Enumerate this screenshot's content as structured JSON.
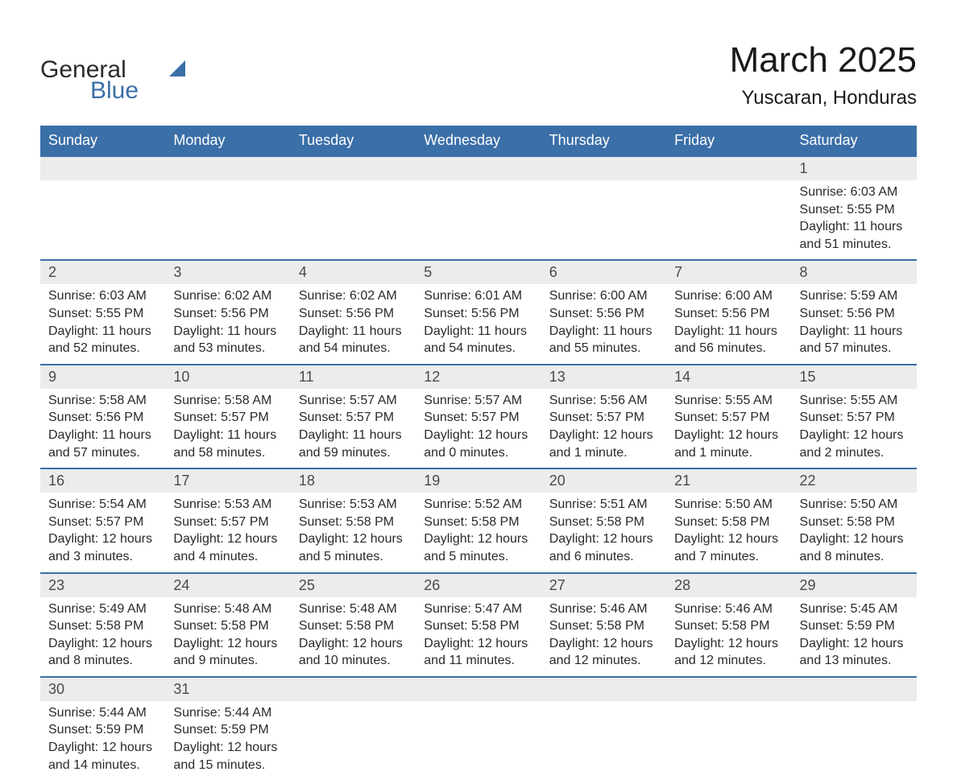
{
  "branding": {
    "name_part1": "General",
    "name_part2": "Blue",
    "colors": {
      "brand_blue": "#3b6fa8",
      "text_dark": "#2a2a2a",
      "header_bg": "#3b6fa8",
      "header_text": "#ffffff",
      "daynum_bg": "#ececec",
      "daynum_text": "#4a4a4a",
      "border_blue": "#3b6fa8"
    }
  },
  "title": "March 2025",
  "location": "Yuscaran, Honduras",
  "day_headers": [
    "Sunday",
    "Monday",
    "Tuesday",
    "Wednesday",
    "Thursday",
    "Friday",
    "Saturday"
  ],
  "weeks": [
    {
      "cells": [
        {
          "day": "",
          "sunrise": "",
          "sunset": "",
          "daylight": ""
        },
        {
          "day": "",
          "sunrise": "",
          "sunset": "",
          "daylight": ""
        },
        {
          "day": "",
          "sunrise": "",
          "sunset": "",
          "daylight": ""
        },
        {
          "day": "",
          "sunrise": "",
          "sunset": "",
          "daylight": ""
        },
        {
          "day": "",
          "sunrise": "",
          "sunset": "",
          "daylight": ""
        },
        {
          "day": "",
          "sunrise": "",
          "sunset": "",
          "daylight": ""
        },
        {
          "day": "1",
          "sunrise": "Sunrise: 6:03 AM",
          "sunset": "Sunset: 5:55 PM",
          "daylight": "Daylight: 11 hours and 51 minutes."
        }
      ]
    },
    {
      "cells": [
        {
          "day": "2",
          "sunrise": "Sunrise: 6:03 AM",
          "sunset": "Sunset: 5:55 PM",
          "daylight": "Daylight: 11 hours and 52 minutes."
        },
        {
          "day": "3",
          "sunrise": "Sunrise: 6:02 AM",
          "sunset": "Sunset: 5:56 PM",
          "daylight": "Daylight: 11 hours and 53 minutes."
        },
        {
          "day": "4",
          "sunrise": "Sunrise: 6:02 AM",
          "sunset": "Sunset: 5:56 PM",
          "daylight": "Daylight: 11 hours and 54 minutes."
        },
        {
          "day": "5",
          "sunrise": "Sunrise: 6:01 AM",
          "sunset": "Sunset: 5:56 PM",
          "daylight": "Daylight: 11 hours and 54 minutes."
        },
        {
          "day": "6",
          "sunrise": "Sunrise: 6:00 AM",
          "sunset": "Sunset: 5:56 PM",
          "daylight": "Daylight: 11 hours and 55 minutes."
        },
        {
          "day": "7",
          "sunrise": "Sunrise: 6:00 AM",
          "sunset": "Sunset: 5:56 PM",
          "daylight": "Daylight: 11 hours and 56 minutes."
        },
        {
          "day": "8",
          "sunrise": "Sunrise: 5:59 AM",
          "sunset": "Sunset: 5:56 PM",
          "daylight": "Daylight: 11 hours and 57 minutes."
        }
      ]
    },
    {
      "cells": [
        {
          "day": "9",
          "sunrise": "Sunrise: 5:58 AM",
          "sunset": "Sunset: 5:56 PM",
          "daylight": "Daylight: 11 hours and 57 minutes."
        },
        {
          "day": "10",
          "sunrise": "Sunrise: 5:58 AM",
          "sunset": "Sunset: 5:57 PM",
          "daylight": "Daylight: 11 hours and 58 minutes."
        },
        {
          "day": "11",
          "sunrise": "Sunrise: 5:57 AM",
          "sunset": "Sunset: 5:57 PM",
          "daylight": "Daylight: 11 hours and 59 minutes."
        },
        {
          "day": "12",
          "sunrise": "Sunrise: 5:57 AM",
          "sunset": "Sunset: 5:57 PM",
          "daylight": "Daylight: 12 hours and 0 minutes."
        },
        {
          "day": "13",
          "sunrise": "Sunrise: 5:56 AM",
          "sunset": "Sunset: 5:57 PM",
          "daylight": "Daylight: 12 hours and 1 minute."
        },
        {
          "day": "14",
          "sunrise": "Sunrise: 5:55 AM",
          "sunset": "Sunset: 5:57 PM",
          "daylight": "Daylight: 12 hours and 1 minute."
        },
        {
          "day": "15",
          "sunrise": "Sunrise: 5:55 AM",
          "sunset": "Sunset: 5:57 PM",
          "daylight": "Daylight: 12 hours and 2 minutes."
        }
      ]
    },
    {
      "cells": [
        {
          "day": "16",
          "sunrise": "Sunrise: 5:54 AM",
          "sunset": "Sunset: 5:57 PM",
          "daylight": "Daylight: 12 hours and 3 minutes."
        },
        {
          "day": "17",
          "sunrise": "Sunrise: 5:53 AM",
          "sunset": "Sunset: 5:57 PM",
          "daylight": "Daylight: 12 hours and 4 minutes."
        },
        {
          "day": "18",
          "sunrise": "Sunrise: 5:53 AM",
          "sunset": "Sunset: 5:58 PM",
          "daylight": "Daylight: 12 hours and 5 minutes."
        },
        {
          "day": "19",
          "sunrise": "Sunrise: 5:52 AM",
          "sunset": "Sunset: 5:58 PM",
          "daylight": "Daylight: 12 hours and 5 minutes."
        },
        {
          "day": "20",
          "sunrise": "Sunrise: 5:51 AM",
          "sunset": "Sunset: 5:58 PM",
          "daylight": "Daylight: 12 hours and 6 minutes."
        },
        {
          "day": "21",
          "sunrise": "Sunrise: 5:50 AM",
          "sunset": "Sunset: 5:58 PM",
          "daylight": "Daylight: 12 hours and 7 minutes."
        },
        {
          "day": "22",
          "sunrise": "Sunrise: 5:50 AM",
          "sunset": "Sunset: 5:58 PM",
          "daylight": "Daylight: 12 hours and 8 minutes."
        }
      ]
    },
    {
      "cells": [
        {
          "day": "23",
          "sunrise": "Sunrise: 5:49 AM",
          "sunset": "Sunset: 5:58 PM",
          "daylight": "Daylight: 12 hours and 8 minutes."
        },
        {
          "day": "24",
          "sunrise": "Sunrise: 5:48 AM",
          "sunset": "Sunset: 5:58 PM",
          "daylight": "Daylight: 12 hours and 9 minutes."
        },
        {
          "day": "25",
          "sunrise": "Sunrise: 5:48 AM",
          "sunset": "Sunset: 5:58 PM",
          "daylight": "Daylight: 12 hours and 10 minutes."
        },
        {
          "day": "26",
          "sunrise": "Sunrise: 5:47 AM",
          "sunset": "Sunset: 5:58 PM",
          "daylight": "Daylight: 12 hours and 11 minutes."
        },
        {
          "day": "27",
          "sunrise": "Sunrise: 5:46 AM",
          "sunset": "Sunset: 5:58 PM",
          "daylight": "Daylight: 12 hours and 12 minutes."
        },
        {
          "day": "28",
          "sunrise": "Sunrise: 5:46 AM",
          "sunset": "Sunset: 5:58 PM",
          "daylight": "Daylight: 12 hours and 12 minutes."
        },
        {
          "day": "29",
          "sunrise": "Sunrise: 5:45 AM",
          "sunset": "Sunset: 5:59 PM",
          "daylight": "Daylight: 12 hours and 13 minutes."
        }
      ]
    },
    {
      "cells": [
        {
          "day": "30",
          "sunrise": "Sunrise: 5:44 AM",
          "sunset": "Sunset: 5:59 PM",
          "daylight": "Daylight: 12 hours and 14 minutes."
        },
        {
          "day": "31",
          "sunrise": "Sunrise: 5:44 AM",
          "sunset": "Sunset: 5:59 PM",
          "daylight": "Daylight: 12 hours and 15 minutes."
        },
        {
          "day": "",
          "sunrise": "",
          "sunset": "",
          "daylight": ""
        },
        {
          "day": "",
          "sunrise": "",
          "sunset": "",
          "daylight": ""
        },
        {
          "day": "",
          "sunrise": "",
          "sunset": "",
          "daylight": ""
        },
        {
          "day": "",
          "sunrise": "",
          "sunset": "",
          "daylight": ""
        },
        {
          "day": "",
          "sunrise": "",
          "sunset": "",
          "daylight": ""
        }
      ]
    }
  ],
  "typography": {
    "title_fontsize": 44,
    "location_fontsize": 24,
    "header_fontsize": 18,
    "daynum_fontsize": 18,
    "content_fontsize": 16
  }
}
